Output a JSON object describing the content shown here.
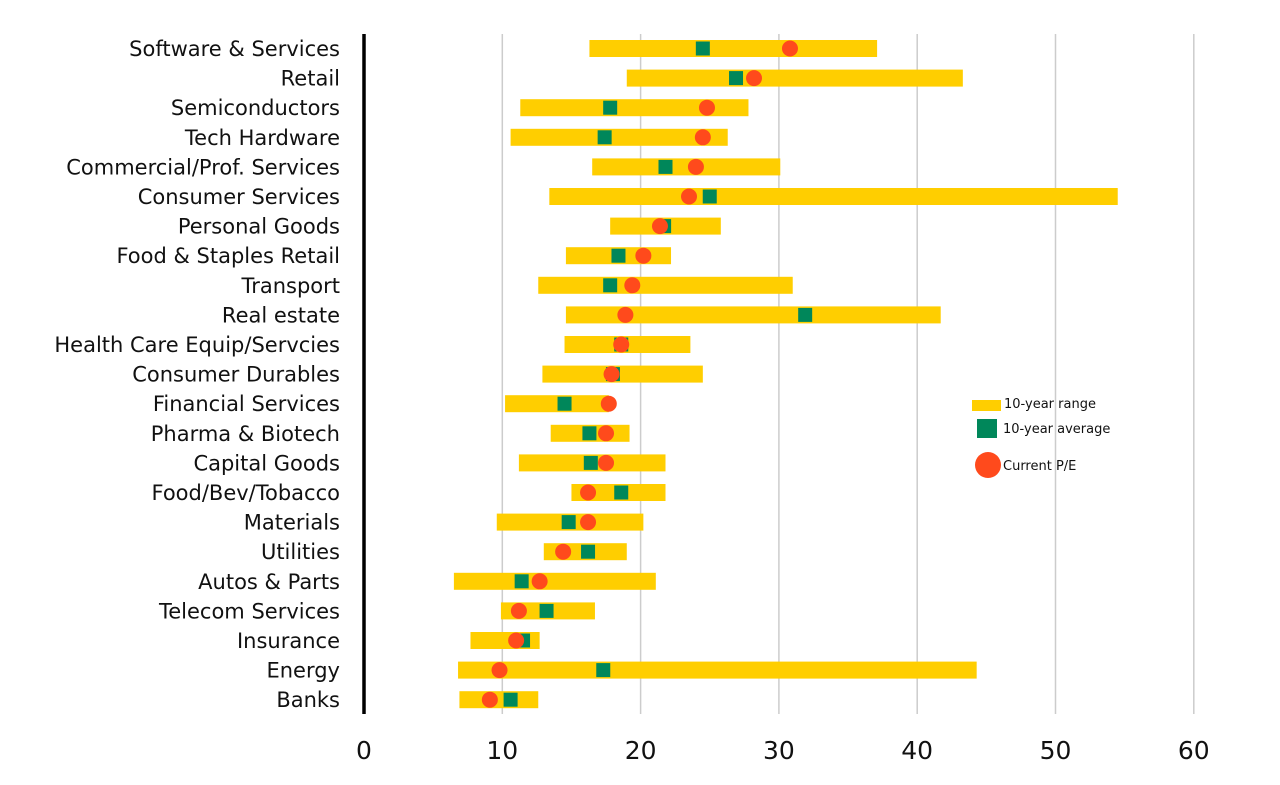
{
  "chart_data": {
    "type": "range-dot",
    "categories": [
      "Software & Services",
      "Retail",
      "Semiconductors",
      "Tech Hardware",
      "Commercial/Prof. Services",
      "Consumer Services",
      "Personal Goods",
      "Food & Staples Retail",
      "Transport",
      "Real estate",
      "Health Care Equip/Servcies",
      "Consumer Durables",
      "Financial Services",
      "Pharma & Biotech",
      "Capital Goods",
      "Food/Bev/Tobacco",
      "Materials",
      "Utilities",
      "Autos & Parts",
      "Telecom Services",
      "Insurance",
      "Energy",
      "Banks"
    ],
    "series": [
      {
        "name": "10-year range",
        "low": [
          16.3,
          19.0,
          11.3,
          10.6,
          16.5,
          13.4,
          17.8,
          14.6,
          12.6,
          14.6,
          14.5,
          12.9,
          10.2,
          13.5,
          11.2,
          15.0,
          9.6,
          13.0,
          6.5,
          9.9,
          7.7,
          6.8,
          6.9
        ],
        "high": [
          37.1,
          43.3,
          27.8,
          26.3,
          30.1,
          54.5,
          25.8,
          22.2,
          31.0,
          41.7,
          23.6,
          24.5,
          17.7,
          19.2,
          21.8,
          21.8,
          20.2,
          19.0,
          21.1,
          16.7,
          12.7,
          44.3,
          12.6
        ],
        "color": "#FFCE00"
      },
      {
        "name": "10-year average",
        "values": [
          24.5,
          26.9,
          17.8,
          17.4,
          21.8,
          25.0,
          21.7,
          18.4,
          17.8,
          31.9,
          18.6,
          18.0,
          14.5,
          16.3,
          16.4,
          18.6,
          14.8,
          16.2,
          11.4,
          13.2,
          11.5,
          17.3,
          10.6
        ],
        "color": "#00875A"
      },
      {
        "name": "Current P/E",
        "values": [
          30.8,
          28.2,
          24.8,
          24.5,
          24.0,
          23.5,
          21.4,
          20.2,
          19.4,
          18.9,
          18.6,
          17.9,
          17.7,
          17.5,
          17.5,
          16.2,
          16.2,
          14.4,
          12.7,
          11.2,
          11.0,
          9.8,
          9.1
        ],
        "color": "#FF4A1C"
      }
    ],
    "x_ticks": [
      "0",
      "10",
      "20",
      "30",
      "40",
      "50",
      "60"
    ],
    "xlim": [
      0,
      60
    ],
    "grid": "vertical",
    "legend_position": "right"
  }
}
